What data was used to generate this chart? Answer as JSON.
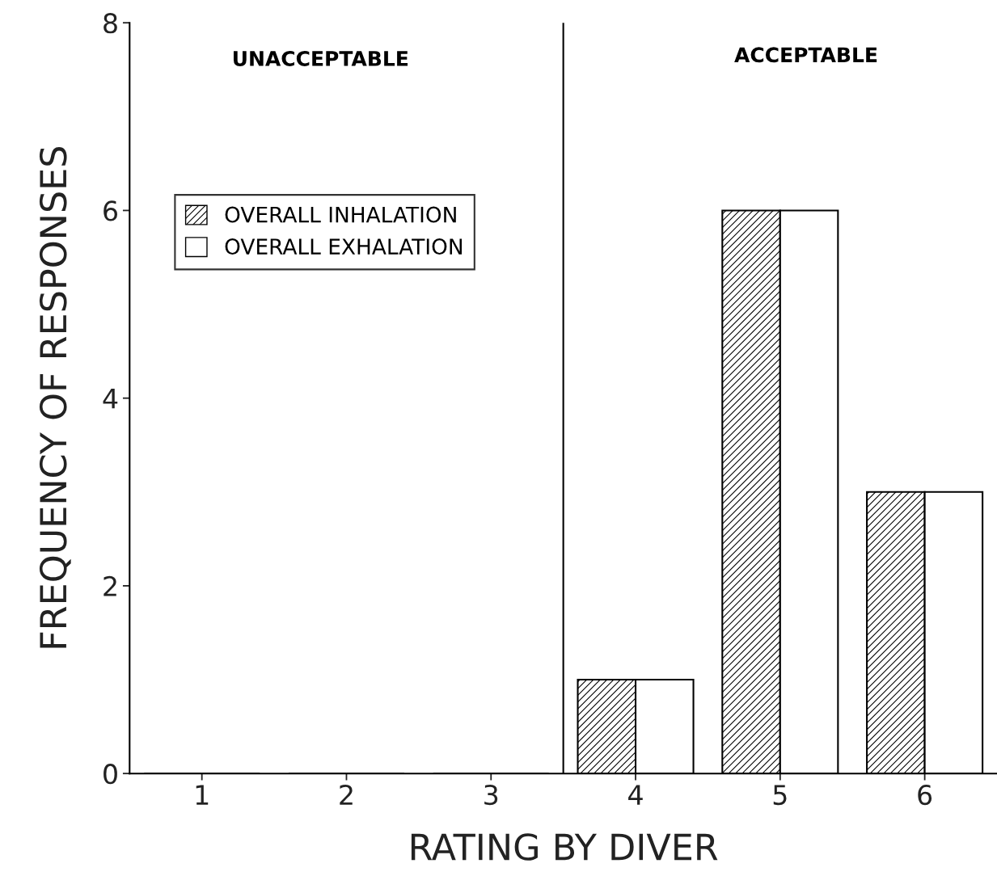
{
  "chart_data": {
    "type": "bar",
    "xlabel": "RATING BY DIVER",
    "ylabel": "FREQUENCY OF RESPONSES",
    "x": [
      1,
      2,
      3,
      4,
      5,
      6
    ],
    "series": [
      {
        "name": "OVERALL INHALATION",
        "color": "#000000",
        "values": [
          0,
          0,
          0,
          1,
          6,
          3
        ]
      },
      {
        "name": "OVERALL EXHALATION",
        "color": "#ffffff",
        "values": [
          0,
          0,
          0,
          1,
          6,
          3
        ]
      }
    ],
    "xlim": [
      0.5,
      6.5
    ],
    "xticks": [
      1,
      2,
      3,
      4,
      5,
      6
    ],
    "ylim": [
      0,
      8
    ],
    "yticks": [
      0,
      2,
      4,
      6,
      8
    ],
    "ref_lines": [
      {
        "axis": "x",
        "value": 3.5,
        "color": "#000000"
      }
    ],
    "annotations": [
      "UNACCEPTABLE",
      "ACCEPTABLE"
    ],
    "grid": false,
    "legend": "top left"
  }
}
